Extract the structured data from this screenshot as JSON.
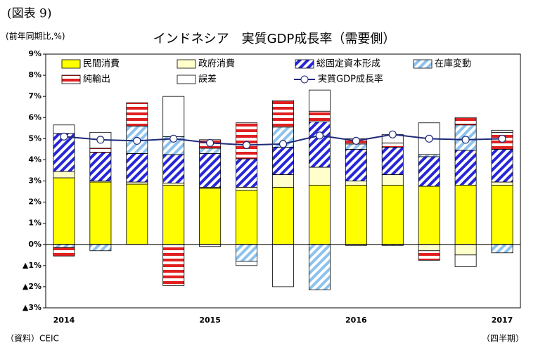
{
  "chart_data": {
    "type": "stacked_bar",
    "figure_label": "(図表 9)",
    "title": "インドネシア　実質GDP成長率（需要側）",
    "y_axis_label": "(前年同期比,%)",
    "x_axis_label": "（四半期）",
    "source": "（資料）CEIC",
    "categories": [
      "2014",
      null,
      null,
      null,
      "2015",
      null,
      null,
      null,
      "2016",
      null,
      null,
      null,
      "2017"
    ],
    "series": [
      {
        "name": "民間消費",
        "color": "#ffff00",
        "pattern": "solid",
        "values": [
          3.15,
          2.95,
          2.85,
          2.8,
          2.65,
          2.55,
          2.7,
          2.8,
          2.8,
          2.8,
          2.75,
          2.8,
          2.8
        ]
      },
      {
        "name": "政府消費",
        "color": "#ffffcc",
        "pattern": "solid",
        "values": [
          0.3,
          0.05,
          0.1,
          0.1,
          0.05,
          0.15,
          0.6,
          0.85,
          0.2,
          0.5,
          -0.3,
          -0.5,
          0.15
        ]
      },
      {
        "name": "総固定資本形成",
        "color": "#2626d9",
        "pattern": "diagonal",
        "values": [
          1.8,
          1.35,
          1.35,
          1.35,
          1.6,
          1.35,
          1.3,
          2.15,
          1.5,
          1.3,
          1.4,
          1.65,
          1.55
        ]
      },
      {
        "name": "在庫変動",
        "color": "#8cc2ee",
        "pattern": "diagonal",
        "values": [
          -0.15,
          -0.3,
          1.3,
          0.85,
          0.25,
          -0.8,
          0.95,
          -2.15,
          0.25,
          -0.05,
          0.1,
          1.2,
          -0.4
        ]
      },
      {
        "name": "純輸出",
        "color": "#e02020",
        "pattern": "horizontal",
        "values": [
          -0.4,
          0.2,
          1.1,
          -1.95,
          0.4,
          1.7,
          1.25,
          0.5,
          0.25,
          0.2,
          -0.45,
          0.35,
          0.8
        ]
      },
      {
        "name": "誤差",
        "color": "#ffffff",
        "pattern": "solid",
        "values": [
          0.4,
          0.75,
          0,
          1.9,
          -0.1,
          -0.2,
          -2.0,
          1.0,
          -0.05,
          0.4,
          1.5,
          -0.55,
          0.1
        ]
      }
    ],
    "line": {
      "name": "実質GDP成長率",
      "color": "#1f2a78",
      "values": [
        5.1,
        4.95,
        4.9,
        5.0,
        4.8,
        4.7,
        4.75,
        5.15,
        4.9,
        5.2,
        5.0,
        4.95,
        5.0
      ]
    },
    "ylim": [
      -3,
      9
    ],
    "yticks": [
      {
        "value": -3,
        "label": "▲3%"
      },
      {
        "value": -2,
        "label": "▲2%"
      },
      {
        "value": -1,
        "label": "▲1%"
      },
      {
        "value": 0,
        "label": "0%"
      },
      {
        "value": 1,
        "label": "1%"
      },
      {
        "value": 2,
        "label": "2%"
      },
      {
        "value": 3,
        "label": "3%"
      },
      {
        "value": 4,
        "label": "4%"
      },
      {
        "value": 5,
        "label": "5%"
      },
      {
        "value": 6,
        "label": "6%"
      },
      {
        "value": 7,
        "label": "7%"
      },
      {
        "value": 8,
        "label": "8%"
      },
      {
        "value": 9,
        "label": "9%"
      }
    ]
  }
}
